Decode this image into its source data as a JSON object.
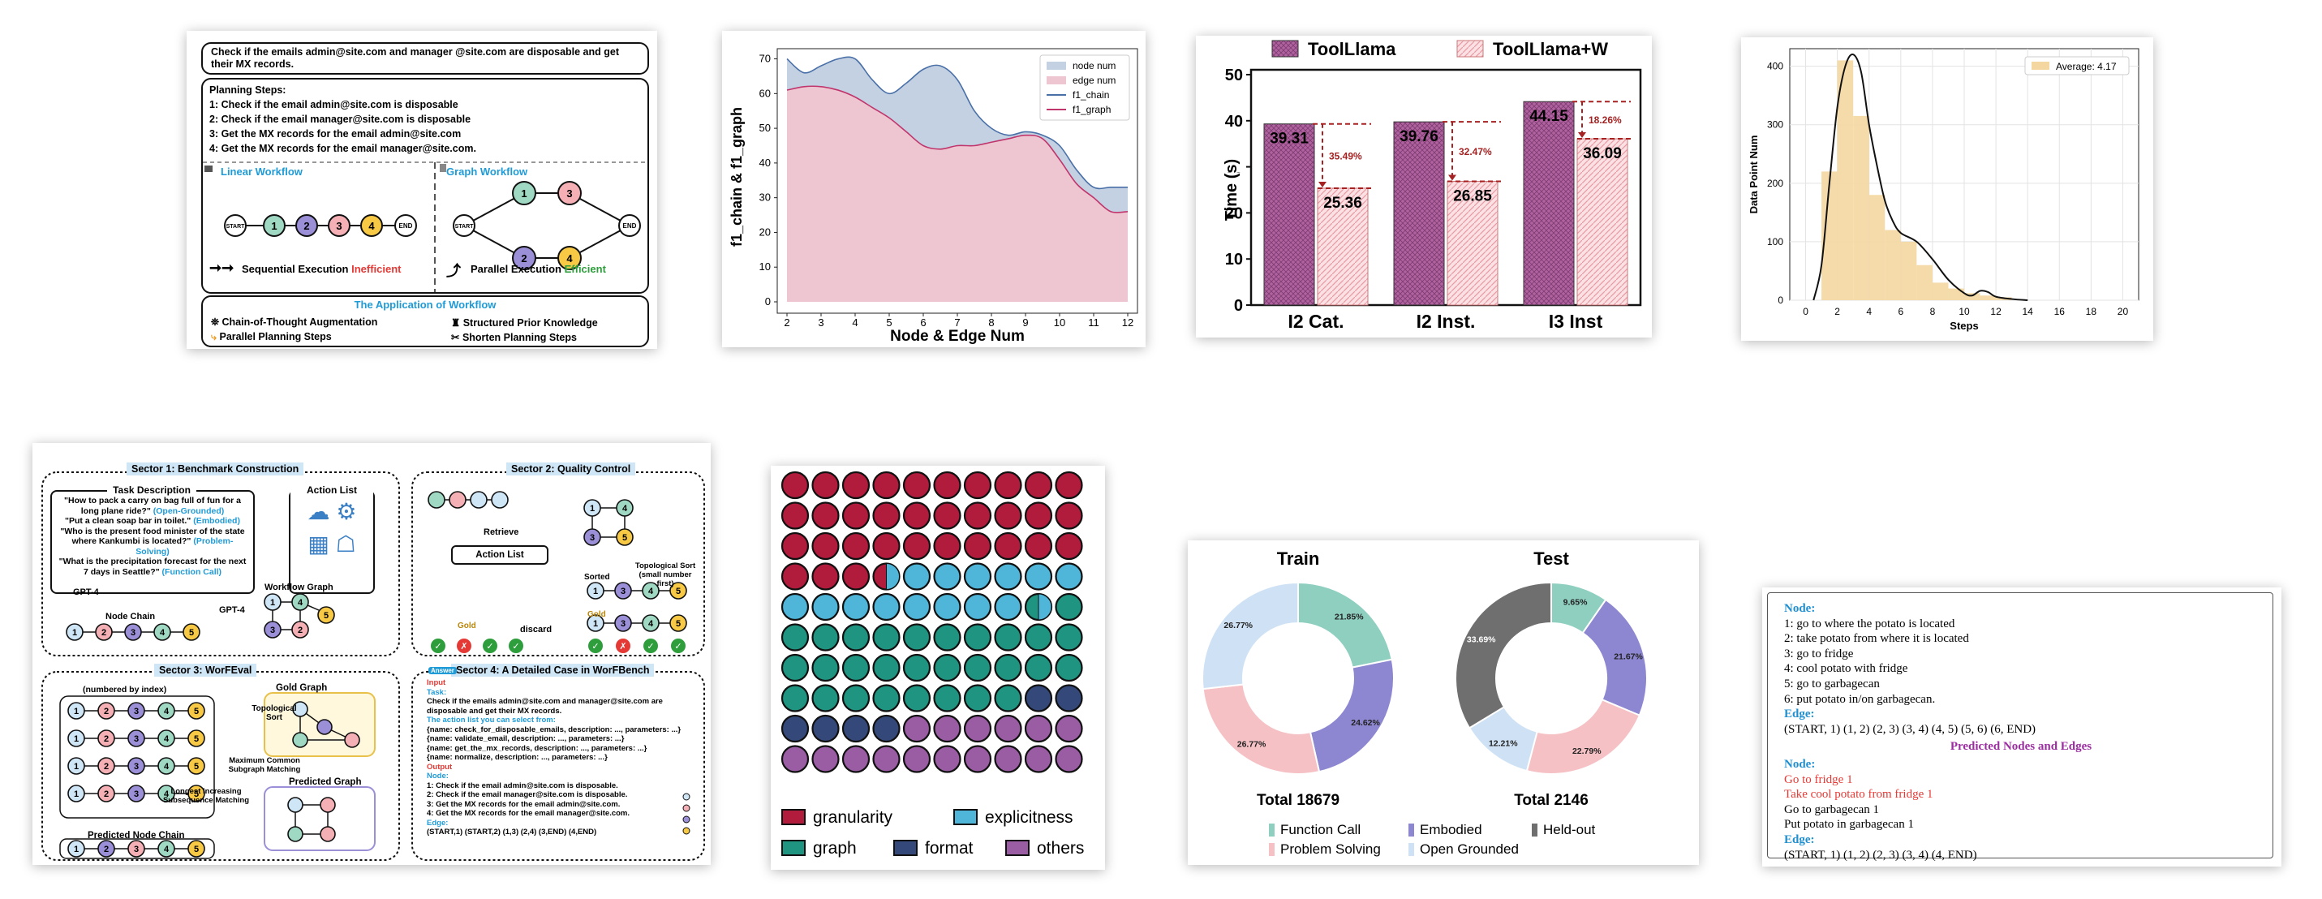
{
  "wf_case": {
    "query": "Check if the emails admin@site.com and manager @site.com are disposable and get their MX records.",
    "planning_title": "Planning Steps:",
    "steps": [
      "1: Check if the email admin@site.com is disposable",
      "2: Check if the email manager@site.com is disposable",
      "3: Get the MX records for the email admin@site.com",
      "4: Get the MX records for the email manager@site.com."
    ],
    "linear_title": "Linear Workflow",
    "graph_title": "Graph Workflow",
    "start": "START",
    "end": "END",
    "nodes": [
      "1",
      "2",
      "3",
      "4"
    ],
    "seq_prefix": "Sequential Execution ",
    "seq_word": "Inefficient",
    "par_prefix": "Parallel Execution ",
    "par_word": "Efficient",
    "app_title": "The Application of Workflow",
    "apps": [
      "Chain-of-Thought Augmentation",
      "Structured Prior Knowledge",
      "Parallel Planning Steps",
      "Shorten Planning Steps"
    ],
    "colors": {
      "n1": "#9fd9c4",
      "n2": "#9b8fd8",
      "n3": "#f5b0b5",
      "n4": "#f7c945",
      "accent": "#1f9bd7",
      "red": "#e53935",
      "green": "#2e9e3c"
    }
  },
  "area_chart": {
    "chart_data": {
      "type": "area",
      "xlabel": "Node & Edge Num",
      "ylabel": "f1_chain & f1_graph",
      "x": [
        2,
        2.5,
        3,
        3.5,
        4,
        4.5,
        5,
        5.5,
        6,
        6.5,
        7,
        7.5,
        8,
        8.5,
        9,
        9.5,
        10,
        10.5,
        11,
        11.5,
        12
      ],
      "xticks": [
        2,
        3,
        4,
        5,
        6,
        7,
        8,
        9,
        10,
        11,
        12
      ],
      "yticks": [
        0,
        10,
        20,
        30,
        40,
        50,
        60,
        70
      ],
      "ylim": [
        0,
        72
      ],
      "series": [
        {
          "name": "f1_chain",
          "values": [
            70,
            66,
            68,
            70,
            70,
            64,
            60,
            63,
            67,
            68,
            64,
            55,
            50,
            48,
            49,
            48,
            45,
            38,
            33,
            33,
            33
          ]
        },
        {
          "name": "f1_graph",
          "values": [
            61,
            62,
            62,
            61,
            59,
            56,
            53,
            49,
            45,
            44,
            45,
            45,
            46,
            47,
            48,
            47,
            41,
            34,
            30,
            26,
            26
          ]
        }
      ],
      "legend": [
        "node num",
        "edge num",
        "f1_chain",
        "f1_graph"
      ],
      "legend_position": "top-right",
      "colors": {
        "chain_fill": "#c4d1e3",
        "graph_fill": "#eec6d2",
        "chain_line": "#4a70a8",
        "graph_line": "#c0366c"
      }
    }
  },
  "bar_chart": {
    "chart_data": {
      "type": "bar",
      "categories": [
        "I2 Cat.",
        "I2 Inst.",
        "I3 Inst"
      ],
      "ylabel": "Time (s)",
      "ylim": [
        0,
        50
      ],
      "yticks": [
        0,
        10,
        20,
        30,
        40,
        50
      ],
      "series": [
        {
          "name": "ToolLlama",
          "values": [
            39.31,
            39.76,
            44.15
          ]
        },
        {
          "name": "ToolLlama+W",
          "values": [
            25.36,
            26.85,
            36.09
          ]
        }
      ],
      "reductions": [
        "35.49%",
        "32.47%",
        "18.26%"
      ],
      "colors": {
        "a": "#b062a0",
        "b": "#f5c2c8",
        "arrow": "#a52222"
      }
    }
  },
  "hist_chart": {
    "chart_data": {
      "type": "bar",
      "xlabel": "Steps",
      "ylabel": "Data Point Num",
      "legend": "Average: 4.17",
      "bins": [
        [
          1,
          2,
          220
        ],
        [
          2,
          3,
          410
        ],
        [
          3,
          4,
          315
        ],
        [
          4,
          5,
          180
        ],
        [
          5,
          6,
          120
        ],
        [
          6,
          7,
          100
        ],
        [
          7,
          8,
          60
        ],
        [
          8,
          9,
          30
        ],
        [
          9,
          10,
          20
        ],
        [
          10,
          11,
          12
        ],
        [
          11,
          12,
          8
        ],
        [
          12,
          13,
          5
        ]
      ],
      "kde": [
        [
          0.5,
          0
        ],
        [
          1,
          60
        ],
        [
          1.5,
          200
        ],
        [
          2,
          330
        ],
        [
          2.5,
          400
        ],
        [
          3,
          420
        ],
        [
          3.5,
          390
        ],
        [
          4,
          300
        ],
        [
          4.5,
          230
        ],
        [
          5,
          170
        ],
        [
          5.5,
          135
        ],
        [
          6,
          115
        ],
        [
          7,
          100
        ],
        [
          8,
          70
        ],
        [
          9,
          35
        ],
        [
          10,
          12
        ],
        [
          10.5,
          8
        ],
        [
          11,
          16
        ],
        [
          11.5,
          14
        ],
        [
          12,
          6
        ],
        [
          13,
          2
        ],
        [
          14,
          0
        ]
      ],
      "xticks": [
        0,
        2,
        4,
        6,
        8,
        10,
        12,
        14,
        16,
        18,
        20
      ],
      "yticks": [
        0,
        100,
        200,
        300,
        400
      ],
      "xlim": [
        0,
        20
      ],
      "ylim": [
        0,
        430
      ],
      "colors": {
        "bar": "#f4d7a0",
        "line": "#111111"
      }
    }
  },
  "bench": {
    "s1": "Sector 1: Benchmark Construction",
    "s2": "Sector 2: Quality Control",
    "s3": "Sector 3: WorFEval",
    "s4": "Sector 4: A Detailed Case in WorFBench",
    "task_desc": "Task Description",
    "action_list": "Action List",
    "q1": "\"How to pack a carry on bag full of fun for a long plane ride?\"",
    "t1": "(Open-Grounded)",
    "q2": "\"Put a clean soap bar in toilet.\"",
    "t2": "(Embodied)",
    "q3": "\"Who is the present food minister of the state where Kankumbi is located?\"",
    "t3": "(Problem-Solving)",
    "q4": "\"What is the precipitation forecast for the next 7 days in Seattle?\"",
    "t4": "(Function Call)",
    "gpt4": "GPT-4",
    "node_chain": "Node Chain",
    "workflow_graph": "Workflow Graph",
    "retrieve": "Retrieve",
    "sorted": "Sorted",
    "topo_sort": "Topological Sort (small number first)",
    "discard": "discard",
    "gold": "Gold",
    "retrieve_btn": "Retrieve",
    "numbered": "(numbered by index)",
    "topo": "Topological Sort",
    "gold_graph": "Gold Graph",
    "mcs": "Maximum Common Subgraph Matching",
    "lis": "Longest Increasing Subsequence Matching",
    "pred_graph": "Predicted Graph",
    "pred_chain": "Predicted Node Chain",
    "input": "Input",
    "task": "Task:",
    "task_text": "Check if the emails admin@site.com and manager@site.com are disposable and get their MX records.",
    "alist_head": "The action list you can select from:",
    "alist": [
      "{name: check_for_disposable_emails, description: ..., parameters: ...}",
      "{name: validate_email, description: ..., parameters: ...}",
      "{name: get_the_mx_records, description: ..., parameters: ...}",
      "{name: normalize, description: ..., parameters: ...}"
    ],
    "output": "Output",
    "node_lbl": "Node:",
    "nodes": [
      "1: Check if the email admin@site.com is disposable.",
      "2: Check if the email manager@site.com is disposable.",
      "3: Get the MX records for the email admin@site.com.",
      "4: Get the MX records for the email manager@site.com."
    ],
    "edge_lbl": "Edge:",
    "edges": "(START,1) (START,2) (1,3) (2,4) (3,END) (4,END)",
    "answer": "Answer"
  },
  "waffle": {
    "chart_data": {
      "type": "waffle",
      "categories": [
        "granularity",
        "explicitness",
        "graph",
        "format",
        "others"
      ],
      "colors": {
        "granularity": "#b11b3c",
        "explicitness": "#4fb6d9",
        "graph": "#1f9480",
        "format": "#34487a",
        "others": "#9a5ca3"
      },
      "rows": [
        "GGGGGGGGGG",
        "GGGGGGGGGG",
        "GGGGGGGGGG",
        "GGGHEEEEEE",
        "EEEEEEEEHR",
        "RRRRRRRRRR",
        "RRRRRRRRRR",
        "RRRRRRRRFF",
        "FFFFOOOOOO",
        "OOOOOOOOOO"
      ]
    }
  },
  "donuts": {
    "chart_data": [
      {
        "type": "pie",
        "title": "Train",
        "total": "Total 18679",
        "slices": [
          {
            "name": "Function Call",
            "value": 21.85,
            "label": "21.85%"
          },
          {
            "name": "Embodied",
            "value": 24.62,
            "label": "24.62%"
          },
          {
            "name": "Problem Solving",
            "value": 26.77,
            "label": "26.77%"
          },
          {
            "name": "Open Grounded",
            "value": 26.77,
            "label": "26.77%"
          }
        ]
      },
      {
        "type": "pie",
        "title": "Test",
        "total": "Total 2146",
        "slices": [
          {
            "name": "Function Call",
            "value": 9.65,
            "label": "9.65%"
          },
          {
            "name": "Embodied",
            "value": 21.67,
            "label": "21.67%"
          },
          {
            "name": "Problem Solving",
            "value": 22.79,
            "label": "22.79%"
          },
          {
            "name": "Open Grounded",
            "value": 12.21,
            "label": "12.21%"
          },
          {
            "name": "Held-out",
            "value": 33.69,
            "label": "33.69%"
          }
        ]
      }
    ],
    "legend": [
      "Function Call",
      "Embodied",
      "Held-out",
      "Problem Solving",
      "Open Grounded"
    ],
    "colors": {
      "Function Call": "#8fcfc0",
      "Embodied": "#8d87d1",
      "Held-out": "#6f6f6f",
      "Problem Solving": "#f6c1c5",
      "Open Grounded": "#cfe2f5"
    }
  },
  "text_card": {
    "node_lbl": "Node:",
    "nodes": [
      "1: go to where the potato is located",
      "2: take potato from where it is located",
      "3: go to fridge",
      "4: cool potato with fridge",
      "5: go to garbagecan",
      "6: put potato in/on garbagecan."
    ],
    "edge_lbl": "Edge:",
    "edges": "(START, 1) (1, 2) (2, 3) (3, 4) (4, 5) (5, 6) (6, END)",
    "pred_title": "Predicted Nodes and Edges",
    "pred_node_lbl": "Node:",
    "pred_nodes": [
      {
        "text": "Go to fridge 1",
        "wrong": true
      },
      {
        "text": "Take cool potato from fridge 1",
        "wrong": true
      },
      {
        "text": "Go to garbagecan 1",
        "wrong": false
      },
      {
        "text": "Put potato in garbagecan 1",
        "wrong": false
      }
    ],
    "pred_edge_lbl": "Edge:",
    "pred_edges": "(START, 1) (1, 2) (2, 3) (3, 4) (4, END)"
  }
}
